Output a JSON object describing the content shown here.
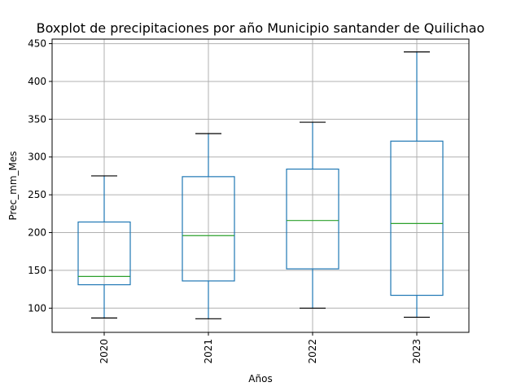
{
  "chart_data": {
    "type": "boxplot",
    "title": "Boxplot de precipitaciones por año Municipio santander de Quilichao",
    "xlabel": "Años",
    "ylabel": "Prec_mm_Mes",
    "categories": [
      "2020",
      "2021",
      "2022",
      "2023"
    ],
    "boxes": [
      {
        "whisker_low": 87,
        "q1": 131,
        "median": 142,
        "q3": 214,
        "whisker_high": 275
      },
      {
        "whisker_low": 86,
        "q1": 136,
        "median": 196,
        "q3": 274,
        "whisker_high": 331
      },
      {
        "whisker_low": 100,
        "q1": 152,
        "median": 216,
        "q3": 284,
        "whisker_high": 346
      },
      {
        "whisker_low": 88,
        "q1": 117,
        "median": 212,
        "q3": 321,
        "whisker_high": 439
      }
    ],
    "ylim": [
      68,
      456
    ],
    "yticks": [
      100,
      150,
      200,
      250,
      300,
      350,
      400,
      450
    ],
    "grid": true,
    "colors": {
      "box": "#1f77b4",
      "median": "#2ca02c",
      "cap": "#000000",
      "grid": "#b0b0b0"
    }
  }
}
